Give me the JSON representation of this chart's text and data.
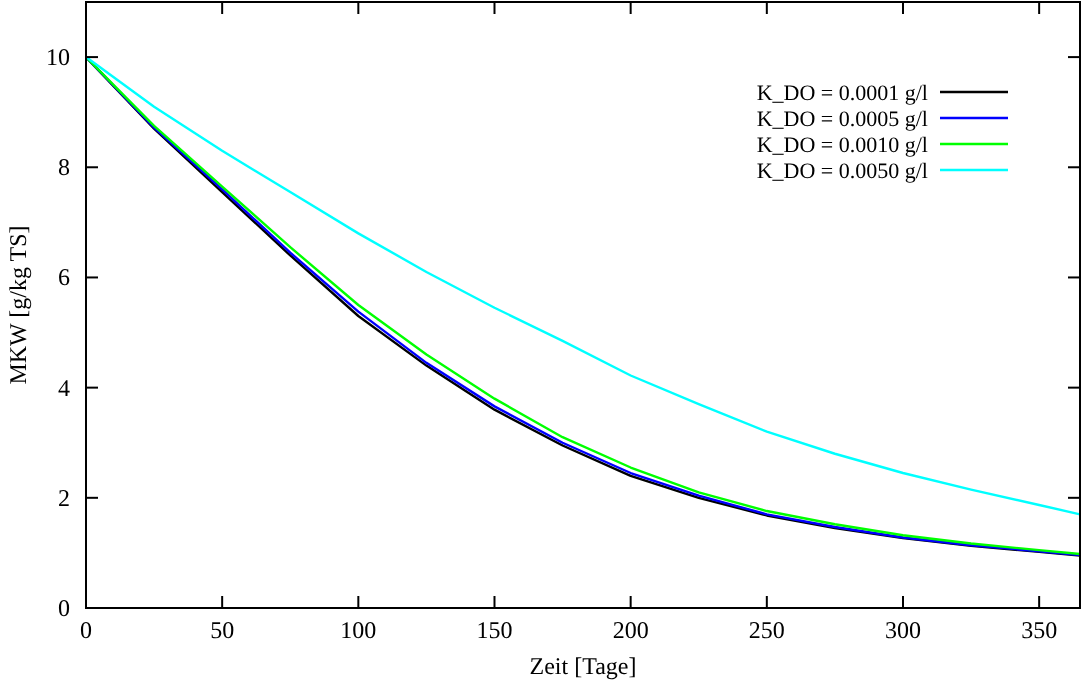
{
  "chart_data": {
    "type": "line",
    "xlabel": "Zeit [Tage]",
    "ylabel": "MKW [g/kg TS]",
    "x": [
      0,
      25,
      50,
      75,
      100,
      125,
      150,
      175,
      200,
      225,
      250,
      275,
      300,
      325,
      350,
      365
    ],
    "xlim": [
      0,
      365
    ],
    "xticks": [
      0,
      50,
      100,
      150,
      200,
      250,
      300,
      350
    ],
    "ylim": [
      0,
      11
    ],
    "yticks": [
      0,
      2,
      4,
      6,
      8,
      10
    ],
    "legend": "top right",
    "grid": false,
    "series": [
      {
        "name": "K_DO = 0.0001 g/l",
        "color": "#000000",
        "values": [
          10,
          8.7,
          7.55,
          6.4,
          5.3,
          4.4,
          3.6,
          2.95,
          2.4,
          2.0,
          1.68,
          1.45,
          1.27,
          1.13,
          1.02,
          0.95
        ]
      },
      {
        "name": "K_DO = 0.0005 g/l",
        "color": "#0000ff",
        "values": [
          10,
          8.72,
          7.6,
          6.45,
          5.38,
          4.45,
          3.66,
          3.0,
          2.45,
          2.04,
          1.7,
          1.47,
          1.28,
          1.14,
          1.03,
          0.96
        ]
      },
      {
        "name": "K_DO = 0.0010 g/l",
        "color": "#00ff00",
        "values": [
          10,
          8.75,
          7.65,
          6.55,
          5.5,
          4.6,
          3.8,
          3.1,
          2.55,
          2.1,
          1.76,
          1.52,
          1.32,
          1.17,
          1.05,
          0.98
        ]
      },
      {
        "name": "K_DO = 0.0050 g/l",
        "color": "#00ffff",
        "values": [
          10,
          9.1,
          8.3,
          7.55,
          6.8,
          6.1,
          5.45,
          4.85,
          4.22,
          3.7,
          3.2,
          2.8,
          2.45,
          2.15,
          1.87,
          1.7
        ]
      }
    ]
  }
}
